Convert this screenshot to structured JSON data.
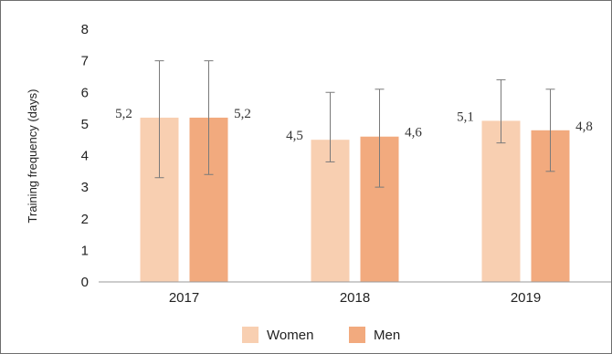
{
  "chart_data": {
    "type": "bar",
    "title": "",
    "xlabel": "",
    "ylabel": "Training frequency (days)",
    "ylim": [
      0,
      8
    ],
    "yticks": [
      "0",
      "1",
      "2",
      "3",
      "4",
      "5",
      "6",
      "7",
      "8"
    ],
    "categories": [
      "2017",
      "2018",
      "2019"
    ],
    "series": [
      {
        "name": "Women",
        "color": "#f8cfb1",
        "values": [
          5.2,
          4.5,
          5.1
        ],
        "value_labels": [
          "5,2",
          "4,5",
          "5,1"
        ],
        "error_low": [
          3.3,
          3.8,
          4.4
        ],
        "error_high": [
          7.0,
          6.0,
          6.4
        ]
      },
      {
        "name": "Men",
        "color": "#f2aa7e",
        "values": [
          5.2,
          4.6,
          4.8
        ],
        "value_labels": [
          "5,2",
          "4,6",
          "4,8"
        ],
        "error_low": [
          3.4,
          3.0,
          3.5
        ],
        "error_high": [
          7.0,
          6.1,
          6.1
        ]
      }
    ],
    "grid": false,
    "legend_position": "bottom"
  }
}
